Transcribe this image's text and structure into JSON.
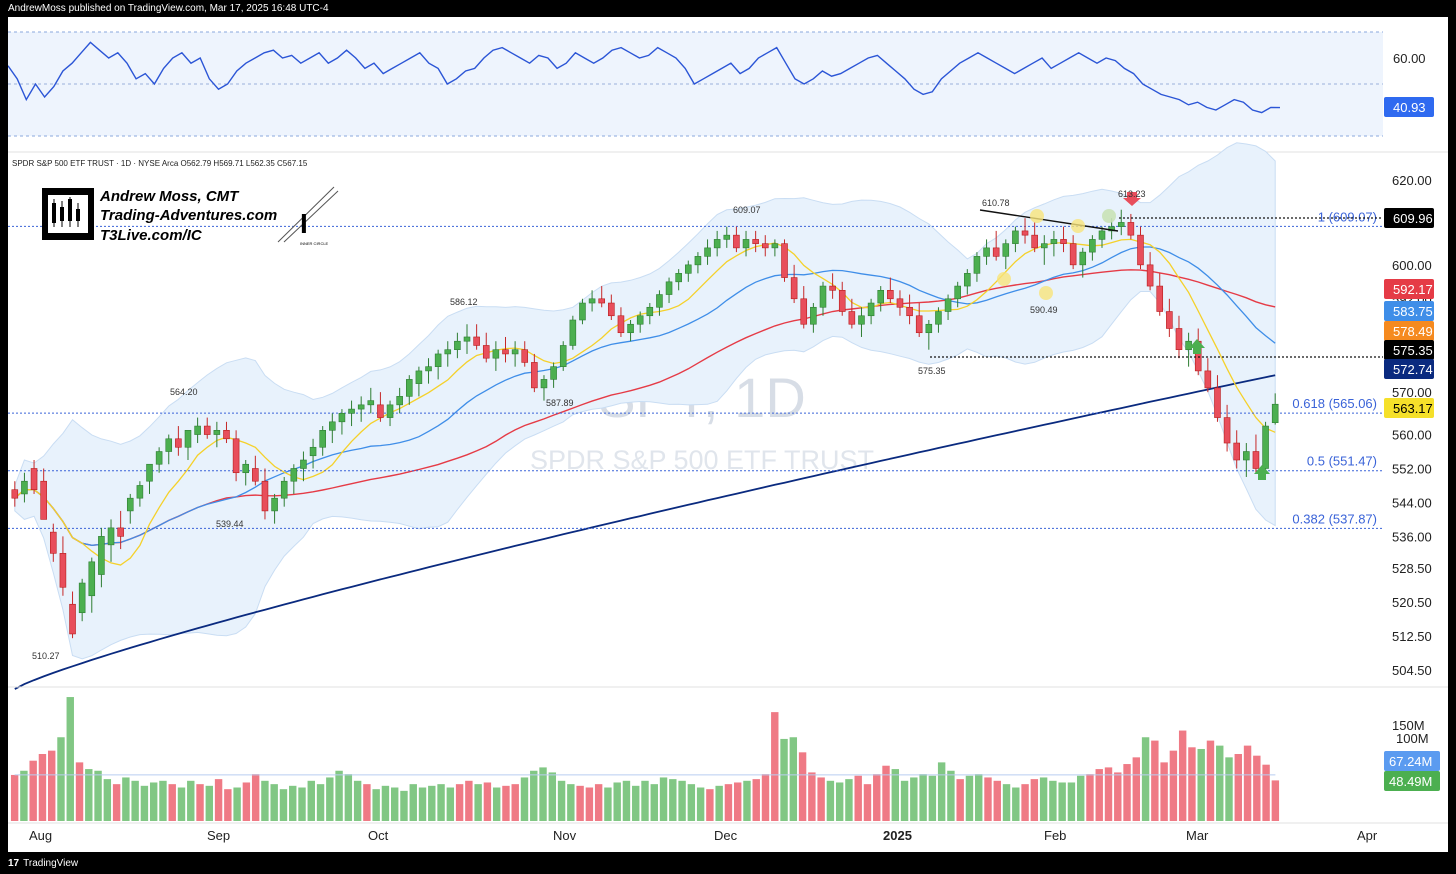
{
  "header": {
    "published_text": "AndrewMoss published on TradingView.com, Mar 17, 2025 16:48 UTC-4"
  },
  "footer": {
    "logo_text": "17",
    "brand": "TradingView"
  },
  "symbol_line": "SPDR S&P 500 ETF TRUST · 1D · NYSE Arca  O562.79  H569.71  L562.35  C567.15",
  "watermark": {
    "ticker": "SPY, 1D",
    "name": "SPDR S&P 500 ETF TRUST"
  },
  "branding": {
    "name": "Andrew Moss, CMT",
    "site": "Trading-Adventures.com",
    "link": "T3Live.com/IC",
    "seal_text": "INNER CIRCLE"
  },
  "colors": {
    "up": "#81c784",
    "down": "#ef7a85",
    "up_body": "#4caf50",
    "down_body": "#e84e5b",
    "ma_fast": "#f5d12a",
    "ma_mid": "#3f8ee8",
    "ma_slow": "#e53b46",
    "ma_long": "#0a2a7f",
    "bollinger_fill": "#e8f2fc",
    "fib": "#3a63d8",
    "rsi": "#2b55d6"
  },
  "chart_data": [
    {
      "type": "line",
      "name": "rsi-panel",
      "y_ticks": [
        "60.00"
      ],
      "last_value_label": "40.93",
      "last_value": 40.93,
      "series": [
        {
          "values": [
            57,
            52,
            44,
            50,
            45,
            49,
            55,
            58,
            62,
            66,
            63,
            60,
            62,
            58,
            52,
            54,
            50,
            56,
            60,
            62,
            58,
            60,
            52,
            48,
            50,
            55,
            58,
            60,
            62,
            63,
            60,
            61,
            58,
            60,
            62,
            58,
            60,
            63,
            60,
            56,
            58,
            54,
            56,
            58,
            60,
            62,
            58,
            56,
            50,
            52,
            55,
            56,
            60,
            63,
            64,
            62,
            60,
            58,
            61,
            60,
            56,
            58,
            62,
            60,
            58,
            60,
            63,
            64,
            62,
            60,
            61,
            64,
            62,
            60,
            56,
            50,
            52,
            54,
            56,
            58,
            54,
            56,
            60,
            62,
            64,
            58,
            52,
            50,
            52,
            55,
            53,
            54,
            56,
            58,
            60,
            61,
            58,
            55,
            52,
            48,
            46,
            47,
            52,
            55,
            58,
            60,
            62,
            60,
            58,
            56,
            54,
            56,
            58,
            60,
            56,
            58,
            60,
            62,
            60,
            58,
            60,
            59,
            56,
            54,
            50,
            48,
            46,
            45,
            44,
            42,
            43,
            41,
            40,
            42,
            44,
            43,
            40,
            39,
            41,
            40.93
          ]
        }
      ]
    },
    {
      "type": "candlestick",
      "name": "price-panel",
      "x_labels": [
        "Aug",
        "Sep",
        "Oct",
        "Nov",
        "Dec",
        "2025",
        "Feb",
        "Mar",
        "Apr"
      ],
      "y_ticks": [
        620.0,
        600.0,
        592.0,
        584.0,
        576.0,
        570.0,
        560.0,
        552.0,
        544.0,
        536.0,
        528.5,
        520.5,
        512.5,
        504.5
      ],
      "y_tick_labels": [
        "620.00",
        "600.00",
        "592.00",
        "584.00",
        "576.00",
        "570.00",
        "560.00",
        "552.00",
        "544.00",
        "536.00",
        "528.50",
        "520.50",
        "512.50",
        "504.50"
      ],
      "price_annotations": [
        "610.78",
        "609.07",
        "586.12",
        "564.20",
        "587.89",
        "539.44",
        "510.27",
        "575.35",
        "590.49",
        "613.23"
      ],
      "fib_levels": [
        {
          "label": "1 (609.07)",
          "value": 609.07
        },
        {
          "label": "0.618 (565.06)",
          "value": 565.06
        },
        {
          "label": "0.5 (551.47)",
          "value": 551.47
        },
        {
          "label": "0.382 (537.87)",
          "value": 537.87
        }
      ],
      "last_values": [
        {
          "label": "609.96",
          "color": "#000000"
        },
        {
          "label": "592.17",
          "color": "#e53b46"
        },
        {
          "label": "583.75",
          "color": "#3f8ee8"
        },
        {
          "label": "578.49",
          "color": "#f58a1f"
        },
        {
          "label": "575.35",
          "color": "#000000"
        },
        {
          "label": "572.74",
          "color": "#0a2a7f"
        },
        {
          "label": "563.17",
          "color": "#f5e02a"
        }
      ],
      "support_line": 575.35,
      "resistance_line": 609.96,
      "ohlc": [
        [
          547,
          549,
          543,
          545
        ],
        [
          546,
          551,
          544,
          549
        ],
        [
          552,
          554,
          546,
          547
        ],
        [
          549,
          552,
          540,
          540
        ],
        [
          537,
          539,
          530,
          532
        ],
        [
          532,
          536,
          522,
          524
        ],
        [
          520,
          523,
          512,
          513
        ],
        [
          518,
          526,
          516,
          525
        ],
        [
          522,
          531,
          518,
          530
        ],
        [
          527,
          538,
          524,
          536
        ],
        [
          534,
          540,
          530,
          538
        ],
        [
          538,
          542,
          533,
          536
        ],
        [
          542,
          546,
          539,
          545
        ],
        [
          545,
          549,
          543,
          548
        ],
        [
          549,
          553,
          546,
          553
        ],
        [
          553,
          557,
          551,
          556
        ],
        [
          556,
          560,
          553,
          559
        ],
        [
          559,
          562,
          555,
          557
        ],
        [
          557,
          561,
          554,
          561
        ],
        [
          560,
          564,
          558,
          562
        ],
        [
          562,
          564,
          559,
          560
        ],
        [
          560,
          563,
          557,
          561
        ],
        [
          561,
          563,
          558,
          559
        ],
        [
          559,
          561,
          549,
          551
        ],
        [
          551,
          554,
          548,
          553
        ],
        [
          552,
          555,
          548,
          549
        ],
        [
          549,
          552,
          540,
          542
        ],
        [
          542,
          546,
          539,
          545
        ],
        [
          545,
          550,
          543,
          549
        ],
        [
          549,
          553,
          546,
          552
        ],
        [
          552,
          556,
          549,
          554
        ],
        [
          555,
          559,
          552,
          557
        ],
        [
          557,
          562,
          555,
          561
        ],
        [
          561,
          565,
          558,
          563
        ],
        [
          563,
          566,
          560,
          565
        ],
        [
          565,
          568,
          562,
          566
        ],
        [
          566,
          569,
          563,
          567
        ],
        [
          567,
          571,
          565,
          568
        ],
        [
          567,
          570,
          563,
          564
        ],
        [
          564,
          568,
          562,
          567
        ],
        [
          567,
          571,
          565,
          569
        ],
        [
          569,
          574,
          567,
          573
        ],
        [
          572,
          576,
          569,
          575
        ],
        [
          575,
          578,
          572,
          576
        ],
        [
          576,
          580,
          573,
          579
        ],
        [
          579,
          582,
          576,
          580
        ],
        [
          580,
          584,
          578,
          582
        ],
        [
          582,
          586,
          579,
          583
        ],
        [
          583,
          586,
          580,
          581
        ],
        [
          581,
          584,
          577,
          578
        ],
        [
          578,
          582,
          575,
          580
        ],
        [
          580,
          583,
          577,
          579
        ],
        [
          579,
          582,
          576,
          580
        ],
        [
          580,
          582,
          576,
          577
        ],
        [
          577,
          579,
          570,
          571
        ],
        [
          571,
          574,
          568,
          573
        ],
        [
          573,
          577,
          571,
          576
        ],
        [
          576,
          582,
          575,
          581
        ],
        [
          581,
          588,
          580,
          587
        ],
        [
          587,
          592,
          586,
          591
        ],
        [
          591,
          594,
          589,
          592
        ],
        [
          592,
          595,
          590,
          591
        ],
        [
          591,
          593,
          587,
          588
        ],
        [
          588,
          590,
          583,
          584
        ],
        [
          584,
          587,
          582,
          586
        ],
        [
          586,
          589,
          584,
          588
        ],
        [
          588,
          591,
          586,
          590
        ],
        [
          590,
          594,
          588,
          593
        ],
        [
          593,
          597,
          591,
          596
        ],
        [
          596,
          599,
          594,
          598
        ],
        [
          598,
          601,
          596,
          600
        ],
        [
          600,
          603,
          598,
          602
        ],
        [
          602,
          606,
          600,
          604
        ],
        [
          604,
          608,
          602,
          606
        ],
        [
          606,
          609,
          604,
          607
        ],
        [
          607,
          609,
          603,
          604
        ],
        [
          604,
          608,
          602,
          606
        ],
        [
          606,
          608,
          603,
          605
        ],
        [
          605,
          607,
          602,
          604
        ],
        [
          604,
          606,
          602,
          605
        ],
        [
          605,
          606,
          596,
          597
        ],
        [
          597,
          600,
          591,
          592
        ],
        [
          592,
          595,
          585,
          586
        ],
        [
          586,
          591,
          584,
          590
        ],
        [
          590,
          596,
          588,
          595
        ],
        [
          595,
          598,
          592,
          594
        ],
        [
          594,
          596,
          588,
          589
        ],
        [
          589,
          592,
          585,
          586
        ],
        [
          586,
          590,
          583,
          588
        ],
        [
          588,
          592,
          586,
          591
        ],
        [
          591,
          595,
          589,
          594
        ],
        [
          594,
          597,
          591,
          592
        ],
        [
          592,
          594,
          588,
          590
        ],
        [
          590,
          593,
          586,
          588
        ],
        [
          588,
          591,
          583,
          584
        ],
        [
          584,
          587,
          580,
          586
        ],
        [
          586,
          590,
          584,
          589
        ],
        [
          589,
          593,
          587,
          592
        ],
        [
          592,
          596,
          590,
          595
        ],
        [
          595,
          599,
          593,
          598
        ],
        [
          598,
          603,
          596,
          602
        ],
        [
          602,
          606,
          600,
          604
        ],
        [
          604,
          608,
          601,
          602
        ],
        [
          602,
          606,
          599,
          605
        ],
        [
          605,
          609,
          603,
          608
        ],
        [
          608,
          611,
          605,
          607
        ],
        [
          607,
          610,
          603,
          604
        ],
        [
          604,
          607,
          600,
          605
        ],
        [
          605,
          608,
          602,
          606
        ],
        [
          606,
          609,
          603,
          605
        ],
        [
          605,
          607,
          599,
          600
        ],
        [
          600,
          604,
          597,
          603
        ],
        [
          603,
          607,
          601,
          606
        ],
        [
          606,
          609,
          604,
          608
        ],
        [
          608,
          611,
          606,
          609
        ],
        [
          609,
          613,
          607,
          610
        ],
        [
          610,
          612,
          606,
          607
        ],
        [
          607,
          609,
          599,
          600
        ],
        [
          600,
          603,
          594,
          595
        ],
        [
          595,
          598,
          588,
          589
        ],
        [
          589,
          592,
          583,
          585
        ],
        [
          585,
          588,
          578,
          580
        ],
        [
          580,
          584,
          576,
          582
        ],
        [
          582,
          585,
          574,
          575
        ],
        [
          575,
          578,
          570,
          571
        ],
        [
          571,
          574,
          563,
          564
        ],
        [
          564,
          567,
          556,
          558
        ],
        [
          558,
          561,
          552,
          554
        ],
        [
          554,
          558,
          550,
          556
        ],
        [
          556,
          560,
          551,
          552
        ],
        [
          552,
          563,
          551,
          562
        ],
        [
          562.79,
          569.71,
          562.35,
          567.15
        ]
      ]
    },
    {
      "type": "bar",
      "name": "volume-panel",
      "y_ticks": [
        "150M",
        "100M"
      ],
      "last_values": [
        {
          "label": "67.24M",
          "color": "#5b9bf0"
        },
        {
          "label": "48.49M",
          "color": "#4caf50"
        }
      ],
      "values": [
        55,
        60,
        72,
        80,
        84,
        100,
        148,
        70,
        62,
        60,
        50,
        44,
        52,
        48,
        42,
        46,
        48,
        44,
        40,
        48,
        44,
        42,
        50,
        38,
        40,
        46,
        56,
        48,
        44,
        38,
        42,
        40,
        48,
        44,
        52,
        60,
        56,
        48,
        44,
        38,
        42,
        40,
        36,
        44,
        40,
        42,
        44,
        40,
        44,
        48,
        44,
        46,
        40,
        42,
        44,
        52,
        60,
        64,
        58,
        48,
        44,
        42,
        40,
        44,
        40,
        46,
        48,
        42,
        48,
        44,
        52,
        50,
        48,
        44,
        40,
        38,
        42,
        44,
        46,
        48,
        50,
        56,
        130,
        98,
        100,
        82,
        58,
        52,
        48,
        46,
        50,
        54,
        44,
        56,
        66,
        62,
        48,
        52,
        56,
        54,
        70,
        60,
        50,
        54,
        56,
        52,
        48,
        44,
        40,
        44,
        50,
        52,
        48,
        46,
        46,
        54,
        56,
        62,
        64,
        58,
        68,
        76,
        100,
        96,
        70,
        84,
        108,
        88,
        86,
        96,
        90,
        76,
        80,
        90,
        78,
        67.24,
        48.49
      ],
      "up_flags": [
        0,
        1,
        0,
        0,
        0,
        1,
        1,
        0,
        1,
        1,
        1,
        0,
        1,
        1,
        1,
        1,
        1,
        0,
        1,
        1,
        0,
        1,
        0,
        0,
        1,
        0,
        0,
        1,
        1,
        1,
        1,
        1,
        1,
        1,
        1,
        1,
        1,
        1,
        0,
        1,
        1,
        1,
        1,
        1,
        1,
        1,
        1,
        1,
        0,
        0,
        1,
        0,
        1,
        0,
        0,
        1,
        1,
        1,
        1,
        1,
        1,
        0,
        0,
        0,
        1,
        1,
        1,
        1,
        1,
        1,
        1,
        1,
        1,
        1,
        1,
        0,
        1,
        0,
        0,
        1,
        0,
        0,
        0,
        1,
        1,
        0,
        0,
        0,
        1,
        1,
        1,
        0,
        0,
        0,
        0,
        1,
        1,
        1,
        1,
        1,
        1,
        1,
        0,
        1,
        1,
        0,
        0,
        1,
        1,
        0,
        0,
        1,
        1,
        1,
        1,
        1,
        0,
        0,
        0,
        0,
        0,
        0,
        1,
        0,
        0,
        0,
        0,
        0,
        1,
        0,
        1,
        1
      ]
    }
  ]
}
